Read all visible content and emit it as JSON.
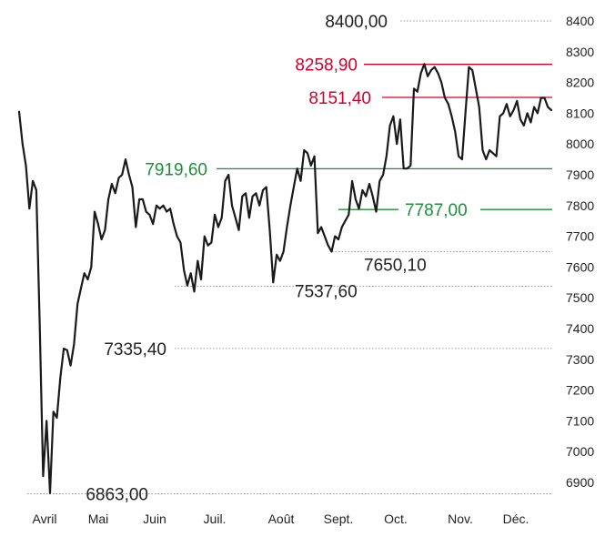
{
  "chart_data": {
    "type": "line",
    "title": "",
    "xlabel": "",
    "ylabel": "",
    "ylim": [
      6863,
      8400
    ],
    "y_ticks": [
      6900,
      7000,
      7100,
      7200,
      7300,
      7400,
      7500,
      7600,
      7700,
      7800,
      7900,
      8000,
      8100,
      8200,
      8300,
      8400
    ],
    "y_tick_labels": [
      "6900",
      "7000",
      "7100",
      "7200",
      "7300",
      "7400",
      "7500",
      "7600",
      "7700",
      "7800",
      "7900",
      "8000",
      "8100",
      "8200",
      "8300",
      "8400"
    ],
    "x_tick_labels": [
      "Avril",
      "Mai",
      "Juin",
      "Juil.",
      "Août",
      "Sept.",
      "Oct.",
      "Nov.",
      "Déc."
    ],
    "grid": "dotted reference lines at annotated levels",
    "series": [
      {
        "color": "#1a1a1a",
        "values": [
          8105,
          8000,
          7930,
          7790,
          7880,
          7850,
          7420,
          6920,
          7100,
          6865,
          7130,
          7110,
          7240,
          7335,
          7330,
          7280,
          7350,
          7480,
          7530,
          7580,
          7560,
          7600,
          7780,
          7740,
          7690,
          7720,
          7820,
          7870,
          7840,
          7890,
          7900,
          7950,
          7900,
          7860,
          7730,
          7820,
          7820,
          7780,
          7770,
          7740,
          7800,
          7790,
          7800,
          7780,
          7790,
          7740,
          7700,
          7680,
          7590,
          7540,
          7580,
          7520,
          7620,
          7560,
          7700,
          7670,
          7680,
          7770,
          7730,
          7760,
          7880,
          7900,
          7800,
          7760,
          7720,
          7830,
          7840,
          7760,
          7830,
          7840,
          7800,
          7850,
          7860,
          7720,
          7550,
          7640,
          7620,
          7650,
          7730,
          7800,
          7860,
          7920,
          7880,
          7980,
          7970,
          7930,
          7960,
          7710,
          7730,
          7700,
          7670,
          7650,
          7700,
          7690,
          7730,
          7750,
          7770,
          7880,
          7820,
          7790,
          7850,
          7830,
          7870,
          7830,
          7780,
          7880,
          7900,
          7960,
          8060,
          8090,
          8000,
          8080,
          7920,
          7920,
          7930,
          8180,
          8170,
          8230,
          8260,
          8220,
          8240,
          8250,
          8230,
          8200,
          8150,
          8130,
          8090,
          8040,
          7960,
          7950,
          8100,
          8250,
          8240,
          8180,
          8120,
          7980,
          7950,
          7980,
          7970,
          7960,
          8090,
          8100,
          8130,
          8090,
          8110,
          8140,
          8080,
          8060,
          8100,
          8070,
          8120,
          8100,
          8150,
          8150,
          8120,
          8110
        ]
      }
    ],
    "annotations": [
      {
        "label": "8400,00",
        "value": 8400.0,
        "color": "#222222",
        "line": "dotted"
      },
      {
        "label": "8258,90",
        "value": 8258.9,
        "color": "#d6002a",
        "line": "solid"
      },
      {
        "label": "8151,40",
        "value": 8151.4,
        "color": "#d6002a",
        "line": "solid"
      },
      {
        "label": "7919,60",
        "value": 7919.6,
        "color": "#1f8f3a",
        "line": "solid"
      },
      {
        "label": "7787,00",
        "value": 7787.0,
        "color": "#1f8f3a",
        "line": "solid"
      },
      {
        "label": "7650,10",
        "value": 7650.1,
        "color": "#222222",
        "line": "dotted"
      },
      {
        "label": "7537,60",
        "value": 7537.6,
        "color": "#222222",
        "line": "dotted"
      },
      {
        "label": "7335,40",
        "value": 7335.4,
        "color": "#222222",
        "line": "dotted"
      },
      {
        "label": "6863,00",
        "value": 6863.0,
        "color": "#222222",
        "line": "dotted"
      }
    ]
  }
}
